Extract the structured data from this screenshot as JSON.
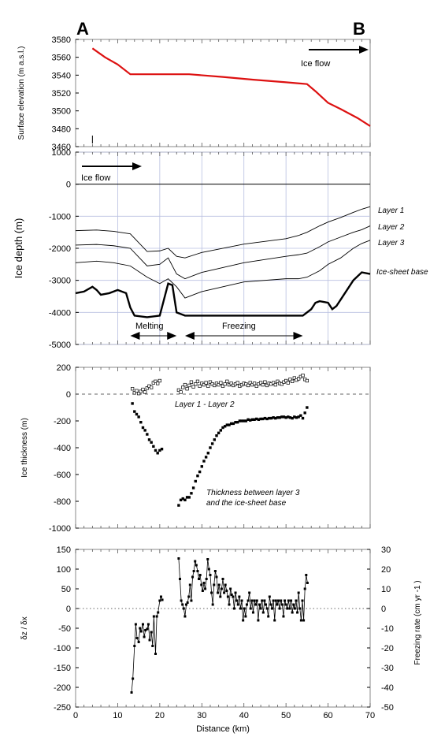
{
  "figure": {
    "corner_left": "A",
    "corner_right": "B",
    "xlabel": "Distance (km)"
  },
  "chart_data": [
    {
      "type": "line",
      "panel": "surface",
      "ylabel": "Surface elevation (m a.s.l.)",
      "xlim": [
        0,
        70
      ],
      "ylim": [
        3460,
        3580
      ],
      "yticks": [
        3460,
        3480,
        3500,
        3520,
        3540,
        3560,
        3580
      ],
      "annotation": "Ice flow",
      "color_line": "#dd1111",
      "series": [
        {
          "x": [
            4,
            7,
            10,
            13,
            20,
            27,
            35,
            42,
            50,
            55,
            57,
            60,
            63,
            67,
            70
          ],
          "y": [
            3570,
            3560,
            3552,
            3541,
            3541,
            3541,
            3538,
            3535,
            3532,
            3530,
            3522,
            3509,
            3502,
            3492,
            3483
          ]
        }
      ]
    },
    {
      "type": "line",
      "panel": "depth",
      "ylabel": "Ice depth (m)",
      "xlim": [
        0,
        70
      ],
      "ylim": [
        -5000,
        1000
      ],
      "yticks": [
        1000,
        0,
        -1000,
        -2000,
        -3000,
        -4000,
        -5000
      ],
      "annotation": "Ice flow",
      "labels": [
        "Layer 1",
        "Layer 2",
        "Layer 3",
        "Ice-sheet base"
      ],
      "melting_label": "Melting",
      "freezing_label": "Freezing",
      "melting_range": [
        13,
        24
      ],
      "freezing_range": [
        26,
        54
      ],
      "series": [
        {
          "x": [
            0,
            5,
            9,
            13,
            17,
            20,
            22,
            24,
            26,
            30,
            40,
            50,
            53,
            55,
            58,
            60,
            63,
            66,
            68,
            70
          ],
          "y": [
            -1450,
            -1430,
            -1470,
            -1550,
            -2100,
            -2080,
            -2000,
            -2250,
            -2300,
            -2130,
            -1870,
            -1700,
            -1600,
            -1500,
            -1300,
            -1180,
            -1040,
            -880,
            -780,
            -700
          ]
        },
        {
          "x": [
            0,
            5,
            9,
            13,
            17,
            20,
            22,
            24,
            26,
            30,
            40,
            50,
            53,
            55,
            58,
            60,
            63,
            66,
            68,
            70
          ],
          "y": [
            -1900,
            -1880,
            -1920,
            -2000,
            -2550,
            -2500,
            -2300,
            -2800,
            -2950,
            -2750,
            -2450,
            -2250,
            -2200,
            -2150,
            -1950,
            -1800,
            -1650,
            -1500,
            -1420,
            -1300
          ]
        },
        {
          "x": [
            0,
            5,
            9,
            13,
            17,
            20,
            22,
            24,
            26,
            30,
            40,
            50,
            53,
            55,
            58,
            60,
            63,
            66,
            68,
            70
          ],
          "y": [
            -2450,
            -2400,
            -2450,
            -2550,
            -2900,
            -3100,
            -2950,
            -3200,
            -3550,
            -3350,
            -3050,
            -2950,
            -2950,
            -2900,
            -2700,
            -2500,
            -2300,
            -2000,
            -1850,
            -1750
          ]
        },
        {
          "x": [
            0,
            2,
            4,
            5,
            6,
            8,
            10,
            12,
            13,
            14,
            17,
            20,
            21,
            22,
            23,
            24,
            26,
            30,
            40,
            50,
            54,
            56,
            57,
            58,
            60,
            61,
            62,
            63,
            64,
            66,
            68,
            70
          ],
          "y": [
            -3400,
            -3350,
            -3200,
            -3300,
            -3450,
            -3400,
            -3300,
            -3400,
            -3850,
            -4100,
            -4150,
            -4100,
            -3600,
            -3100,
            -3150,
            -4000,
            -4100,
            -4100,
            -4100,
            -4100,
            -4100,
            -3900,
            -3700,
            -3650,
            -3700,
            -3900,
            -3800,
            -3600,
            -3400,
            -3000,
            -2750,
            -2800
          ]
        }
      ]
    },
    {
      "type": "scatter",
      "panel": "thickness",
      "ylabel": "Ice thickness (m)",
      "xlim": [
        0,
        70
      ],
      "ylim": [
        -1000,
        200
      ],
      "yticks": [
        200,
        0,
        -200,
        -400,
        -600,
        -800,
        -1000
      ],
      "labels": [
        "Layer 1 - Layer 2",
        "Thickness between layer 3",
        "and the ice-sheet base"
      ],
      "series": [
        {
          "x": [
            13.5,
            14.0,
            14.5,
            15.0,
            15.5,
            16.0,
            16.5,
            17.0,
            17.5,
            18.0,
            18.5,
            19.0,
            19.5,
            20.0,
            24.5,
            25.0,
            25.5,
            26.0,
            26.5,
            27.0,
            27.5,
            28.0,
            28.5,
            29.0,
            29.5,
            30.0,
            30.5,
            31.0,
            31.5,
            32.0,
            32.5,
            33.0,
            33.5,
            34.0,
            34.5,
            35.0,
            35.5,
            36.0,
            36.5,
            37.0,
            37.5,
            38.0,
            38.5,
            39.0,
            39.5,
            40.0,
            40.5,
            41.0,
            41.5,
            42.0,
            42.5,
            43.0,
            43.5,
            44.0,
            44.5,
            45.0,
            45.5,
            46.0,
            46.5,
            47.0,
            47.5,
            48.0,
            48.5,
            49.0,
            49.5,
            50.0,
            50.5,
            51.0,
            51.5,
            52.0,
            52.5,
            53.0,
            53.5,
            54.0,
            54.5,
            55.0
          ],
          "y": [
            40,
            10,
            25,
            5,
            20,
            35,
            15,
            45,
            60,
            50,
            85,
            95,
            80,
            100,
            30,
            15,
            50,
            70,
            40,
            65,
            90,
            55,
            75,
            95,
            60,
            80,
            70,
            85,
            60,
            90,
            75,
            65,
            80,
            70,
            85,
            60,
            75,
            95,
            70,
            80,
            65,
            75,
            85,
            60,
            70,
            80,
            75,
            65,
            85,
            70,
            80,
            60,
            75,
            85,
            70,
            90,
            65,
            80,
            75,
            85,
            70,
            95,
            80,
            75,
            90,
            100,
            85,
            110,
            95,
            120,
            105,
            115,
            130,
            140,
            110,
            100
          ]
        },
        {
          "x": [
            13.5,
            14.0,
            14.5,
            15.0,
            15.5,
            16.0,
            16.5,
            17.0,
            17.5,
            18.0,
            18.5,
            19.0,
            19.5,
            20.0,
            20.5,
            24.5,
            25.0,
            25.5,
            26.0,
            26.5,
            27.0,
            27.5,
            28.0,
            28.5,
            29.0,
            29.5,
            30.0,
            30.5,
            31.0,
            31.5,
            32.0,
            32.5,
            33.0,
            33.5,
            34.0,
            34.5,
            35.0,
            35.5,
            36.0,
            36.5,
            37.0,
            37.5,
            38.0,
            38.5,
            39.0,
            39.5,
            40.0,
            40.5,
            41.0,
            41.5,
            42.0,
            42.5,
            43.0,
            43.5,
            44.0,
            44.5,
            45.0,
            45.5,
            46.0,
            46.5,
            47.0,
            47.5,
            48.0,
            48.5,
            49.0,
            49.5,
            50.0,
            50.5,
            51.0,
            51.5,
            52.0,
            52.5,
            53.0,
            53.5,
            54.0,
            54.5,
            55.0
          ],
          "y": [
            -70,
            -130,
            -150,
            -170,
            -210,
            -250,
            -270,
            -300,
            -340,
            -360,
            -390,
            -420,
            -440,
            -420,
            -410,
            -830,
            -790,
            -780,
            -790,
            -770,
            -770,
            -740,
            -700,
            -650,
            -610,
            -580,
            -540,
            -500,
            -470,
            -440,
            -400,
            -370,
            -340,
            -310,
            -290,
            -270,
            -250,
            -240,
            -230,
            -230,
            -220,
            -220,
            -210,
            -210,
            -200,
            -200,
            -200,
            -200,
            -190,
            -195,
            -190,
            -190,
            -185,
            -190,
            -185,
            -185,
            -180,
            -185,
            -180,
            -180,
            -175,
            -180,
            -175,
            -175,
            -170,
            -170,
            -175,
            -170,
            -175,
            -180,
            -170,
            -175,
            -170,
            -160,
            -180,
            -140,
            -100
          ]
        }
      ]
    },
    {
      "type": "line",
      "panel": "gradient",
      "ylabel": "δz / δx",
      "y2label": "Freezing rate (cm yr -1 )",
      "xlim": [
        0,
        70
      ],
      "ylim": [
        -250,
        150
      ],
      "yticks": [
        150,
        100,
        50,
        0,
        -50,
        -100,
        -150,
        -200,
        -250
      ],
      "y2ticks": [
        30,
        20,
        10,
        0,
        -10,
        -20,
        -30,
        -40,
        -50
      ],
      "xticks": [
        0,
        10,
        20,
        30,
        40,
        50,
        60,
        70
      ],
      "series": [
        {
          "x": [
            13.3,
            13.6,
            14.0,
            14.3,
            14.6,
            15.0,
            15.3,
            15.6,
            16.0,
            16.3,
            16.6,
            17.0,
            17.3,
            17.6,
            18.0,
            18.3,
            18.6,
            19.0,
            19.3,
            19.6,
            20.0,
            20.3,
            20.6
          ],
          "y": [
            -213,
            -178,
            -95,
            -40,
            -75,
            -85,
            -50,
            -58,
            -40,
            -72,
            -55,
            -52,
            -40,
            -80,
            -60,
            -95,
            -20,
            -115,
            -20,
            -10,
            20,
            30,
            22
          ]
        },
        {
          "x": [
            24.5,
            24.8,
            25.1,
            25.4,
            25.7,
            26.0,
            26.3,
            26.6,
            26.9,
            27.2,
            27.5,
            27.8,
            28.1,
            28.4,
            28.7,
            29.0,
            29.3,
            29.6,
            29.9,
            30.2,
            30.5,
            30.8,
            31.1,
            31.4,
            31.7,
            32.0,
            32.3,
            32.6,
            32.9,
            33.2,
            33.5,
            33.8,
            34.1,
            34.4,
            34.7,
            35.0,
            35.3,
            35.6,
            35.9,
            36.2,
            36.5,
            36.8,
            37.1,
            37.4,
            37.7,
            38.0,
            38.3,
            38.6,
            38.9,
            39.2,
            39.5,
            39.8,
            40.1,
            40.4,
            40.7,
            41.0,
            41.3,
            41.6,
            41.9,
            42.2,
            42.5,
            42.8,
            43.1,
            43.4,
            43.7,
            44.0,
            44.3,
            44.6,
            44.9,
            45.2,
            45.5,
            45.8,
            46.1,
            46.4,
            46.7,
            47.0,
            47.3,
            47.6,
            47.9,
            48.2,
            48.5,
            48.8,
            49.1,
            49.4,
            49.7,
            50.0,
            50.3,
            50.6,
            50.9,
            51.2,
            51.5,
            51.8,
            52.1,
            52.4,
            52.7,
            53.0,
            53.3,
            53.6,
            53.9,
            54.2,
            54.5,
            54.8,
            55.1
          ],
          "y": [
            127,
            75,
            20,
            10,
            0,
            -20,
            10,
            15,
            30,
            60,
            20,
            80,
            95,
            120,
            110,
            95,
            75,
            85,
            60,
            45,
            65,
            50,
            75,
            125,
            100,
            85,
            40,
            10,
            60,
            95,
            80,
            40,
            60,
            30,
            50,
            75,
            40,
            60,
            45,
            30,
            10,
            50,
            35,
            30,
            0,
            40,
            20,
            10,
            30,
            0,
            20,
            -30,
            0,
            -20,
            10,
            20,
            40,
            0,
            20,
            -10,
            20,
            10,
            20,
            -30,
            10,
            0,
            20,
            -10,
            20,
            10,
            0,
            -20,
            30,
            10,
            0,
            20,
            -30,
            20,
            10,
            20,
            0,
            20,
            10,
            -20,
            20,
            10,
            0,
            20,
            0,
            20,
            -10,
            10,
            0,
            20,
            -10,
            40,
            0,
            -30,
            20,
            -30,
            50,
            85,
            65
          ]
        }
      ]
    }
  ]
}
